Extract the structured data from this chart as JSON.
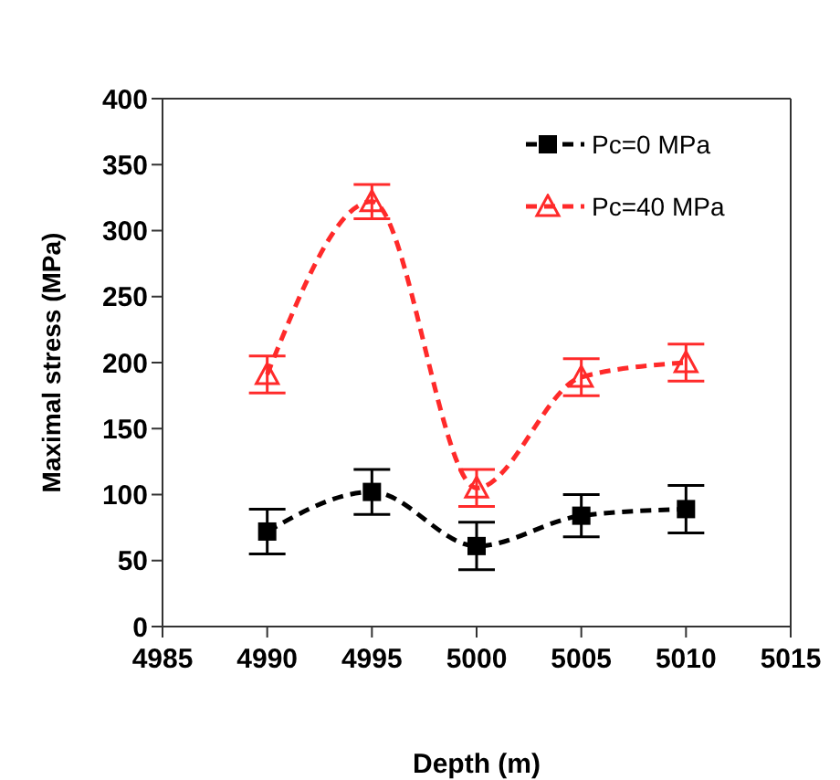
{
  "chart_data": {
    "type": "line",
    "xlabel": "Depth (m)",
    "ylabel": "Maximal stress (MPa)",
    "x": [
      4990,
      4995,
      5000,
      5005,
      5010
    ],
    "xlim": [
      4985,
      5015
    ],
    "xticks": [
      4985,
      4990,
      4995,
      5000,
      5005,
      5010,
      5015
    ],
    "ylim": [
      0,
      400
    ],
    "yticks": [
      0,
      50,
      100,
      150,
      200,
      250,
      300,
      350,
      400
    ],
    "series": [
      {
        "name": "Pc=0 MPa",
        "color": "#000000",
        "marker": "square",
        "values": [
          72,
          102,
          61,
          84,
          89
        ],
        "errors": [
          17,
          17,
          18,
          16,
          18
        ]
      },
      {
        "name": "Pc=40 MPa",
        "color": "#ff2a2a",
        "marker": "triangle",
        "values": [
          191,
          322,
          105,
          189,
          200
        ],
        "errors": [
          14,
          13,
          14,
          14,
          14
        ]
      }
    ],
    "line_style": "dashed",
    "legend": "top right",
    "grid": false
  }
}
